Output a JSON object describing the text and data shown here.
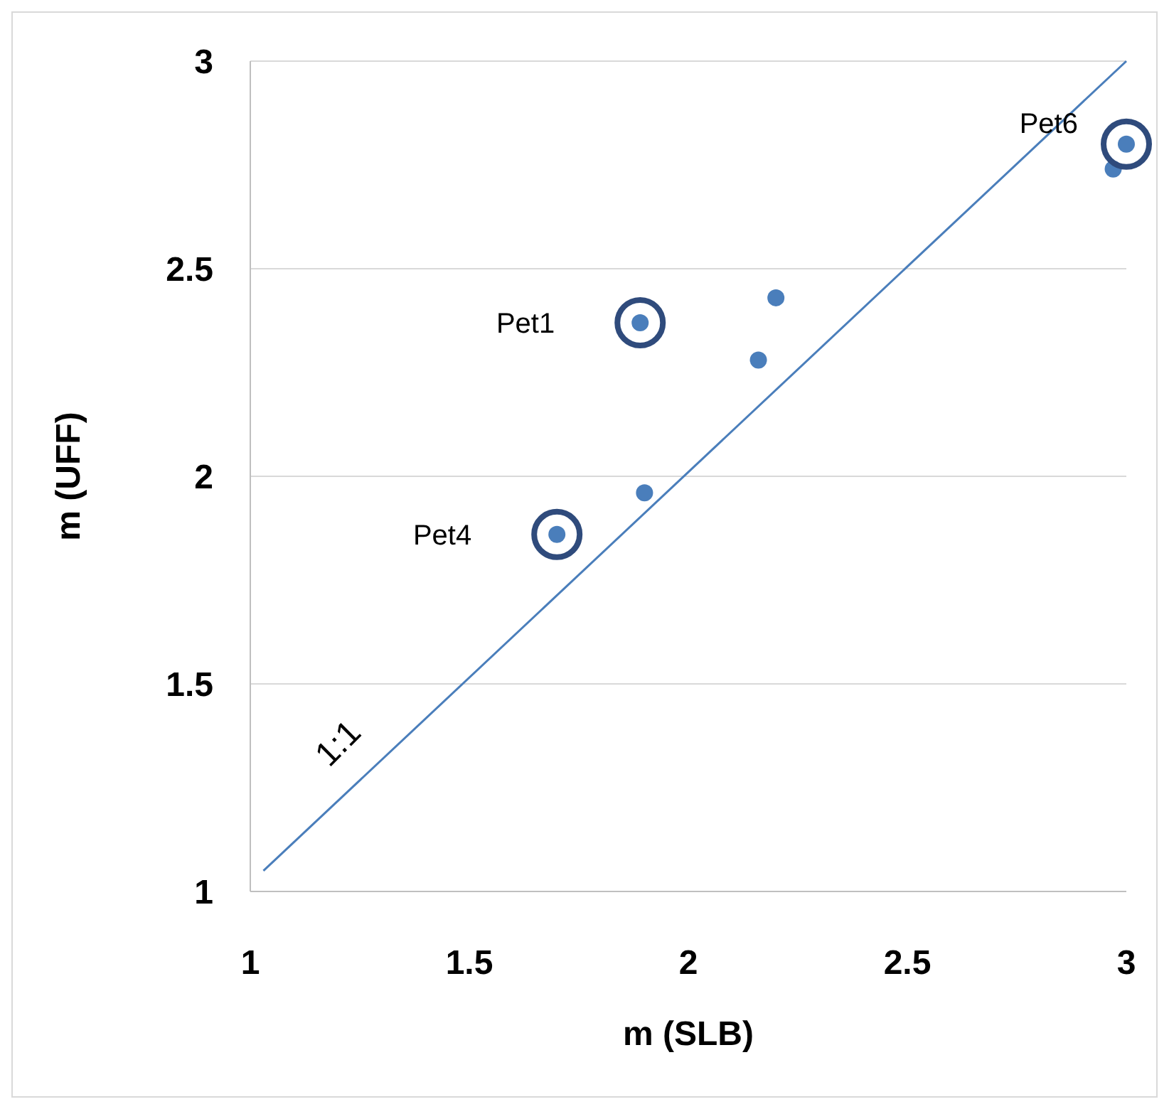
{
  "chart_data": {
    "type": "scatter",
    "xlabel": "m (SLB)",
    "ylabel": "m (UFF)",
    "xlim": [
      1,
      3
    ],
    "ylim": [
      1,
      3
    ],
    "xticks": [
      1,
      1.5,
      2,
      2.5,
      3
    ],
    "yticks": [
      1,
      1.5,
      2,
      2.5,
      3
    ],
    "grid": "y",
    "series": [
      {
        "marker": "circle",
        "color": "#4a7ebb",
        "x": [
          1.7,
          1.89,
          1.9,
          2.16,
          2.2,
          2.97,
          3.0
        ],
        "values": [
          1.86,
          2.37,
          1.96,
          2.28,
          2.43,
          2.74,
          2.8
        ]
      },
      {
        "type": "line",
        "color": "#4a7ebb",
        "x": [
          1.03,
          3
        ],
        "values": [
          1.05,
          3
        ],
        "line_style": "solid"
      }
    ],
    "annotations": [
      {
        "text": "Pet1",
        "x": 1.89,
        "y": 2.37
      },
      {
        "text": "Pet4",
        "x": 1.7,
        "y": 1.86
      },
      {
        "text": "Pet6",
        "x": 3.0,
        "y": 2.8
      },
      "1:1"
    ]
  }
}
